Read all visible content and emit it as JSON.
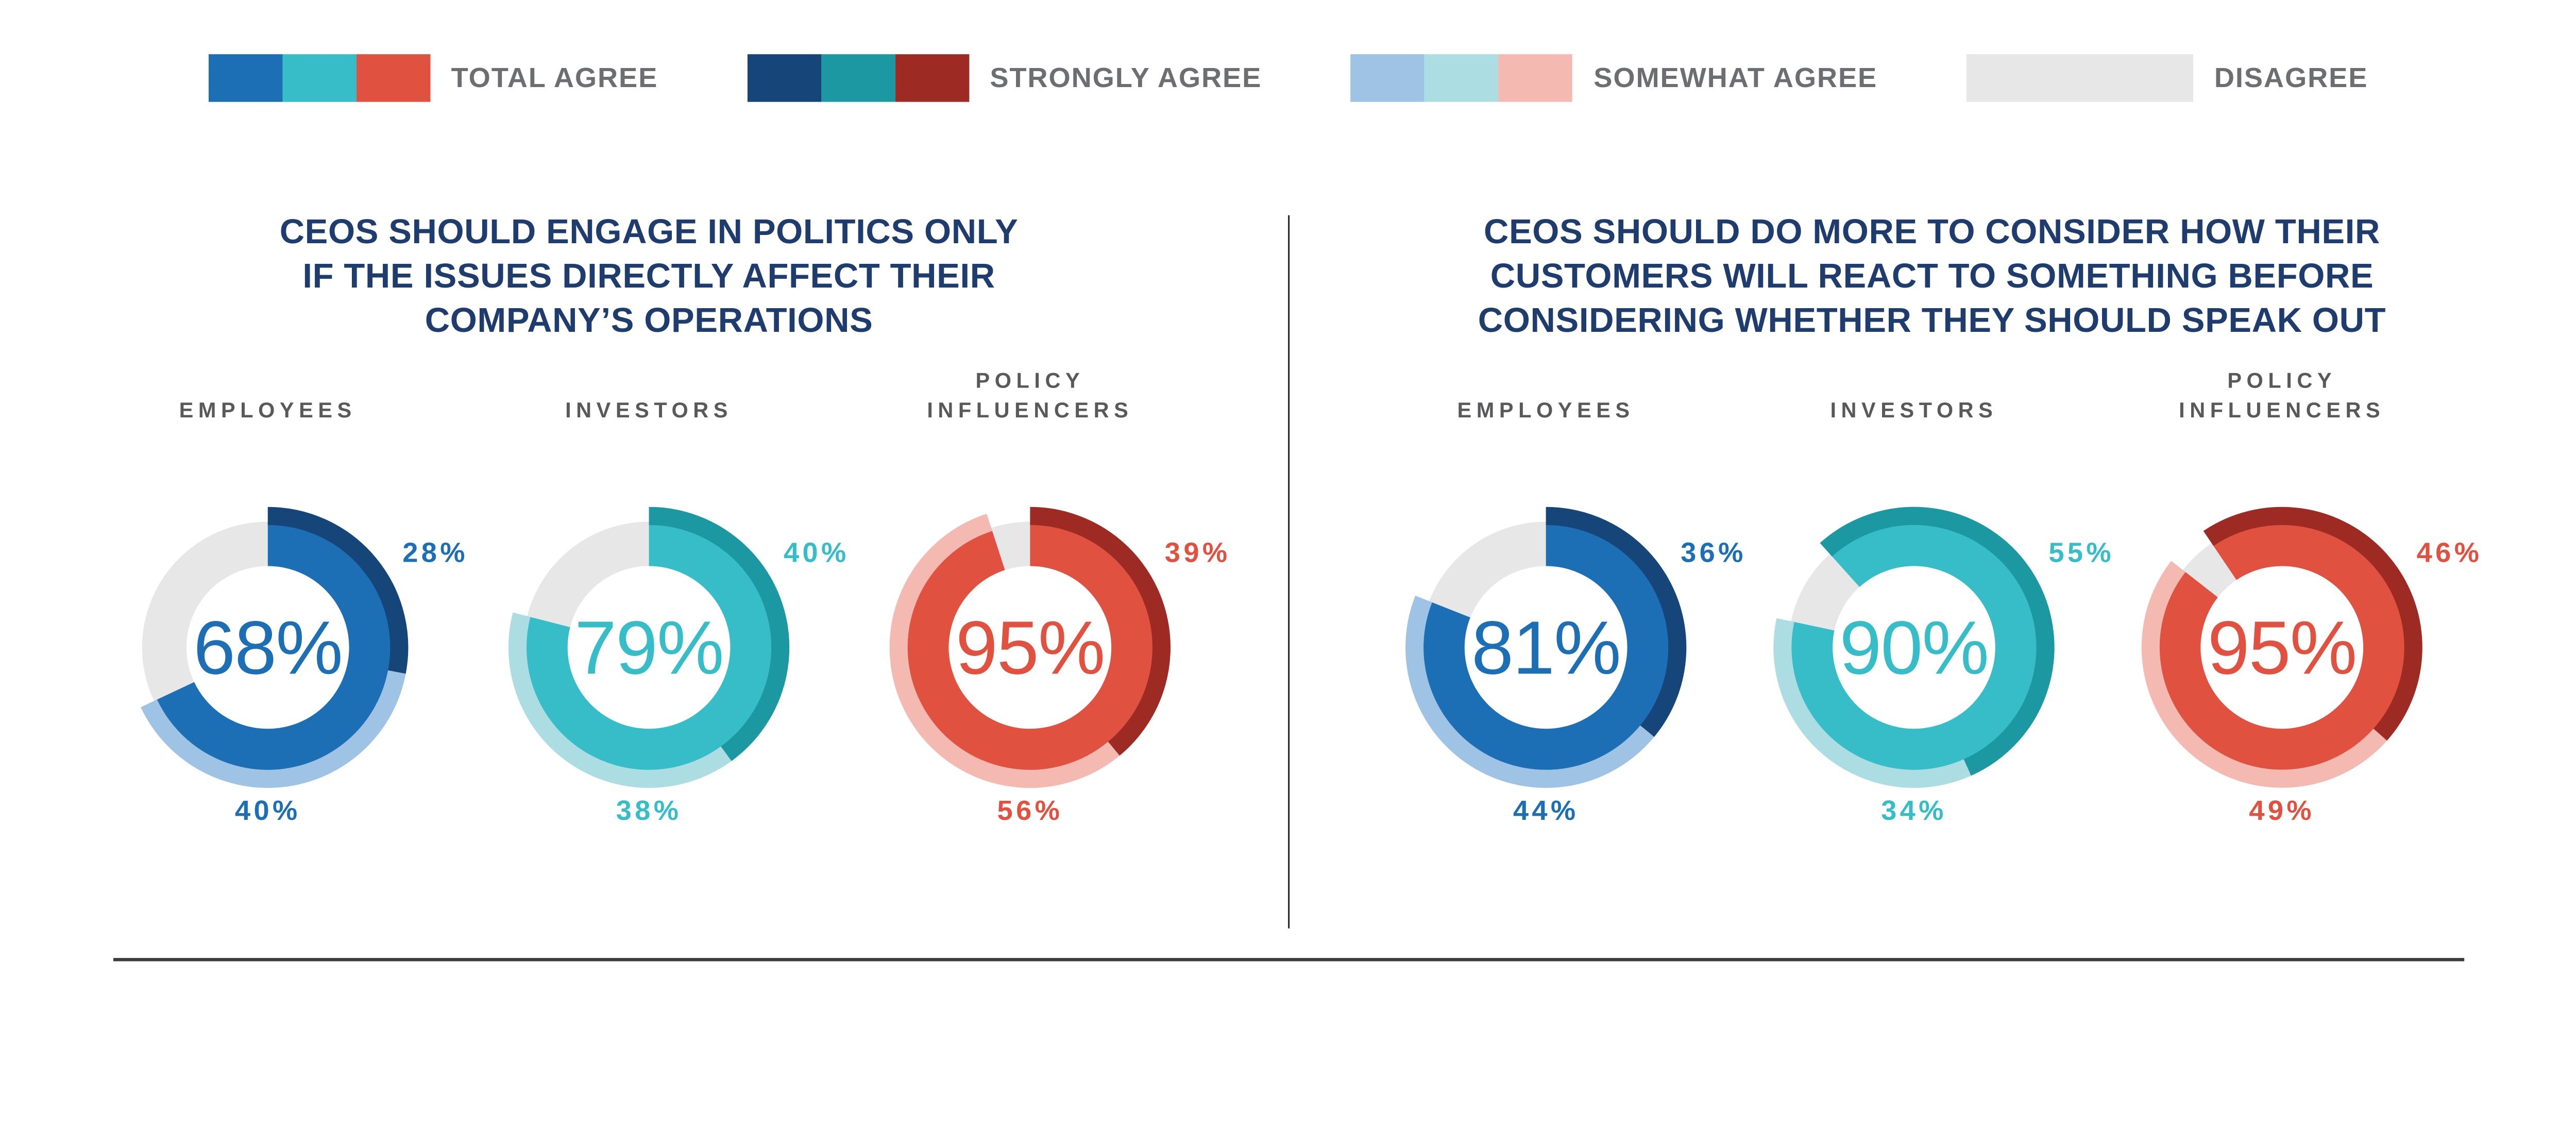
{
  "page": {
    "background": "#ffffff",
    "divider_color": "#2e2e2e",
    "bottom_rule_color": "#3d3d3d"
  },
  "text_colors": {
    "title": "#1e3c6e",
    "group_label": "#58595b",
    "legend": "#6d6e71"
  },
  "palettes": {
    "blue": {
      "main": "#1d6fb5",
      "strong": "#164679",
      "somewhat": "#9fc3e5"
    },
    "teal": {
      "main": "#36bdc8",
      "strong": "#1b98a1",
      "somewhat": "#abdde3"
    },
    "red": {
      "main": "#e05140",
      "strong": "#9d2b23",
      "somewhat": "#f4b9b1"
    },
    "disagree": "#e7e7e8"
  },
  "legend": {
    "items": [
      {
        "label": "TOTAL AGREE",
        "swatches": [
          "#1d6fb5",
          "#36bdc8",
          "#e05140"
        ]
      },
      {
        "label": "STRONGLY AGREE",
        "swatches": [
          "#164679",
          "#1b98a1",
          "#9d2b23"
        ]
      },
      {
        "label": "SOMEWHAT AGREE",
        "swatches": [
          "#9fc3e5",
          "#abdde3",
          "#f4b9b1"
        ]
      },
      {
        "label": "DISAGREE",
        "swatches": [
          "#e7e7e8"
        ]
      }
    ]
  },
  "panels": [
    {
      "id": "left",
      "title_lines": [
        "CEOS SHOULD ENGAGE IN POLITICS ONLY",
        "IF THE ISSUES DIRECTLY AFFECT THEIR",
        "COMPANY’S OPERATIONS"
      ],
      "donuts": [
        {
          "group_lines": [
            "EMPLOYEES"
          ],
          "palette": "blue",
          "start_angle": 0,
          "total": 68,
          "strongly": 28,
          "somewhat": 40,
          "center_label": "68%",
          "strongly_label": "28%",
          "somewhat_label": "40%"
        },
        {
          "group_lines": [
            "INVESTORS"
          ],
          "palette": "teal",
          "start_angle": 0,
          "total": 79,
          "strongly": 40,
          "somewhat": 38,
          "center_label": "79%",
          "strongly_label": "40%",
          "somewhat_label": "38%"
        },
        {
          "group_lines": [
            "POLICY",
            "INFLUENCERS"
          ],
          "palette": "red",
          "start_angle": 0,
          "total": 95,
          "strongly": 39,
          "somewhat": 56,
          "center_label": "95%",
          "strongly_label": "39%",
          "somewhat_label": "56%"
        }
      ]
    },
    {
      "id": "right",
      "title_lines": [
        "CEOS SHOULD DO MORE TO CONSIDER HOW THEIR",
        "CUSTOMERS WILL REACT TO SOMETHING BEFORE",
        "CONSIDERING WHETHER THEY SHOULD SPEAK OUT"
      ],
      "donuts": [
        {
          "group_lines": [
            "EMPLOYEES"
          ],
          "palette": "blue",
          "start_angle": 0,
          "total": 81,
          "strongly": 36,
          "somewhat": 44,
          "center_label": "81%",
          "strongly_label": "36%",
          "somewhat_label": "44%"
        },
        {
          "group_lines": [
            "INVESTORS"
          ],
          "palette": "teal",
          "start_angle": -42,
          "total": 90,
          "strongly": 55,
          "somewhat": 34,
          "center_label": "90%",
          "strongly_label": "55%",
          "somewhat_label": "34%"
        },
        {
          "group_lines": [
            "POLICY",
            "INFLUENCERS"
          ],
          "palette": "red",
          "start_angle": -34,
          "total": 95,
          "strongly": 46,
          "somewhat": 49,
          "center_label": "95%",
          "strongly_label": "46%",
          "somewhat_label": "49%"
        }
      ]
    }
  ],
  "chart_data": [
    {
      "type": "pie",
      "variant": "double-ring-donut",
      "title": "CEOS SHOULD ENGAGE IN POLITICS ONLY IF THE ISSUES DIRECTLY AFFECT THEIR COMPANY’S OPERATIONS",
      "categories": [
        "EMPLOYEES",
        "INVESTORS",
        "POLICY INFLUENCERS"
      ],
      "series": [
        {
          "name": "TOTAL AGREE",
          "values": [
            68,
            79,
            95
          ]
        },
        {
          "name": "STRONGLY AGREE",
          "values": [
            28,
            40,
            39
          ]
        },
        {
          "name": "SOMEWHAT AGREE",
          "values": [
            40,
            38,
            56
          ]
        },
        {
          "name": "DISAGREE",
          "values": [
            32,
            21,
            5
          ]
        }
      ],
      "units": "%",
      "legend_position": "top"
    },
    {
      "type": "pie",
      "variant": "double-ring-donut",
      "title": "CEOS SHOULD DO MORE TO CONSIDER HOW THEIR CUSTOMERS WILL REACT TO SOMETHING BEFORE CONSIDERING WHETHER THEY SHOULD SPEAK OUT",
      "categories": [
        "EMPLOYEES",
        "INVESTORS",
        "POLICY INFLUENCERS"
      ],
      "series": [
        {
          "name": "TOTAL AGREE",
          "values": [
            81,
            90,
            95
          ]
        },
        {
          "name": "STRONGLY AGREE",
          "values": [
            36,
            55,
            46
          ]
        },
        {
          "name": "SOMEWHAT AGREE",
          "values": [
            44,
            34,
            49
          ]
        },
        {
          "name": "DISAGREE",
          "values": [
            19,
            10,
            5
          ]
        }
      ],
      "units": "%",
      "legend_position": "top"
    }
  ]
}
